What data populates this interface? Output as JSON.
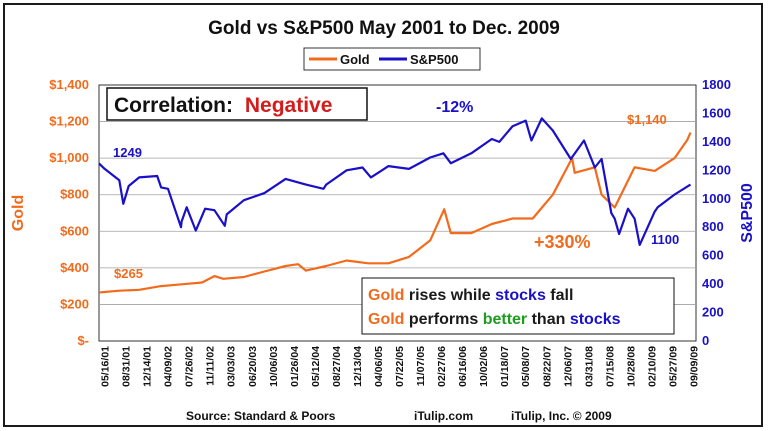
{
  "chart_data": {
    "type": "line",
    "title": "Gold vs S&P500 May 2001 to Dec. 2009",
    "legend": {
      "position": "top-center",
      "items": [
        {
          "label": "Gold",
          "color": "#F26B1D"
        },
        {
          "label": "S&P500",
          "color": "#1A10C8"
        }
      ]
    },
    "y_left": {
      "label": "Gold",
      "range": [
        0,
        1400
      ],
      "ticks": [
        0,
        200,
        400,
        600,
        800,
        1000,
        1200,
        1400
      ],
      "tick_labels": [
        "$-",
        "$200",
        "$400",
        "$600",
        "$800",
        "$1,000",
        "$1,200",
        "$1,400"
      ],
      "color": "#F26B1D"
    },
    "y_right": {
      "label": "S&P500",
      "range": [
        0,
        1800
      ],
      "ticks": [
        0,
        200,
        400,
        600,
        800,
        1000,
        1200,
        1400,
        1600,
        1800
      ],
      "tick_labels": [
        "0",
        "200",
        "400",
        "600",
        "800",
        "1000",
        "1200",
        "1400",
        "1600",
        "1800"
      ],
      "color": "#1A10C8"
    },
    "x_axis": {
      "range": [
        "2001-05-16",
        "2009-12-31"
      ],
      "tick_labels": [
        "05/16/01",
        "08/31/01",
        "12/14/01",
        "04/09/02",
        "07/26/02",
        "11/11/02",
        "03/03/03",
        "06/20/03",
        "10/06/03",
        "01/26/04",
        "05/12/04",
        "08/27/04",
        "12/13/04",
        "04/06/05",
        "07/22/05",
        "11/07/05",
        "02/27/06",
        "06/16/06",
        "10/02/06",
        "01/18/07",
        "05/08/07",
        "08/22/07",
        "12/06/07",
        "03/31/08",
        "07/15/08",
        "10/28/08",
        "02/10/09",
        "05/27/09",
        "09/09/09"
      ]
    },
    "grid": true,
    "series": [
      {
        "name": "Gold",
        "axis": "left",
        "color": "#F26B1D",
        "x": [
          "2001-05-16",
          "2001-08-31",
          "2001-12-14",
          "2002-04-09",
          "2002-07-26",
          "2002-11-11",
          "2003-01-15",
          "2003-03-03",
          "2003-06-20",
          "2003-10-06",
          "2004-01-26",
          "2004-04-01",
          "2004-05-12",
          "2004-08-27",
          "2004-12-13",
          "2005-04-06",
          "2005-07-22",
          "2005-11-07",
          "2006-02-27",
          "2006-05-12",
          "2006-06-16",
          "2006-10-02",
          "2007-01-18",
          "2007-05-08",
          "2007-08-22",
          "2007-12-06",
          "2008-03-17",
          "2008-03-31",
          "2008-07-15",
          "2008-08-20",
          "2008-10-28",
          "2009-02-10",
          "2009-05-27",
          "2009-09-09",
          "2009-11-15",
          "2009-12-02"
        ],
        "y": [
          265,
          275,
          280,
          300,
          310,
          320,
          355,
          340,
          350,
          380,
          410,
          420,
          385,
          410,
          440,
          425,
          425,
          460,
          550,
          720,
          590,
          590,
          640,
          670,
          670,
          800,
          1000,
          920,
          950,
          800,
          730,
          950,
          930,
          1000,
          1100,
          1140
        ]
      },
      {
        "name": "S&P500",
        "axis": "right",
        "color": "#1A10C8",
        "x": [
          "2001-05-16",
          "2001-06-15",
          "2001-08-31",
          "2001-09-21",
          "2001-10-20",
          "2001-12-14",
          "2002-03-19",
          "2002-04-09",
          "2002-05-15",
          "2002-07-23",
          "2002-07-26",
          "2002-08-22",
          "2002-10-09",
          "2002-11-11",
          "2002-11-27",
          "2003-01-15",
          "2003-03-11",
          "2003-03-21",
          "2003-06-20",
          "2003-10-06",
          "2004-01-26",
          "2004-05-12",
          "2004-08-13",
          "2004-08-27",
          "2004-12-13",
          "2005-03-07",
          "2005-04-20",
          "2005-07-22",
          "2005-11-07",
          "2006-02-27",
          "2006-05-08",
          "2006-06-16",
          "2006-10-02",
          "2007-01-18",
          "2007-02-27",
          "2007-05-08",
          "2007-07-16",
          "2007-08-15",
          "2007-10-09",
          "2007-12-06",
          "2008-03-10",
          "2008-05-19",
          "2008-07-15",
          "2008-08-20",
          "2008-10-10",
          "2008-10-28",
          "2008-11-20",
          "2009-01-06",
          "2009-02-10",
          "2009-03-09",
          "2009-05-27",
          "2009-06-12",
          "2009-09-09",
          "2009-12-02"
        ],
        "y": [
          1249,
          1210,
          1130,
          965,
          1090,
          1150,
          1160,
          1080,
          1070,
          800,
          840,
          940,
          776,
          880,
          930,
          920,
          810,
          890,
          990,
          1040,
          1140,
          1100,
          1070,
          1100,
          1200,
          1220,
          1150,
          1230,
          1210,
          1290,
          1320,
          1250,
          1320,
          1420,
          1400,
          1510,
          1550,
          1410,
          1565,
          1480,
          1280,
          1410,
          1220,
          1280,
          900,
          860,
          752,
          930,
          860,
          676,
          910,
          940,
          1030,
          1100
        ]
      }
    ],
    "annotations": {
      "correlation_label": "Correlation:",
      "correlation_value": "Negative",
      "sp_change": "-12%",
      "gold_change": "+330%",
      "sp_start": "1249",
      "gold_start": "$265",
      "gold_end": "$1,140",
      "sp_end": "1100"
    },
    "callout": {
      "line1": [
        {
          "text": "Gold",
          "color": "#F26B1D"
        },
        {
          "text": " rises while ",
          "color": "#1a1a1a"
        },
        {
          "text": "stocks",
          "color": "#1A10C8"
        },
        {
          "text": " fall",
          "color": "#1a1a1a"
        }
      ],
      "line2": [
        {
          "text": "Gold",
          "color": "#F26B1D"
        },
        {
          "text": " performs ",
          "color": "#1a1a1a"
        },
        {
          "text": "better",
          "color": "#1E9C1E"
        },
        {
          "text": " than ",
          "color": "#1a1a1a"
        },
        {
          "text": "stocks",
          "color": "#1A10C8"
        }
      ]
    },
    "footer": {
      "source": "Source: Standard & Poors",
      "site": "iTulip.com",
      "copyright": "iTulip, Inc. © 2009"
    }
  }
}
